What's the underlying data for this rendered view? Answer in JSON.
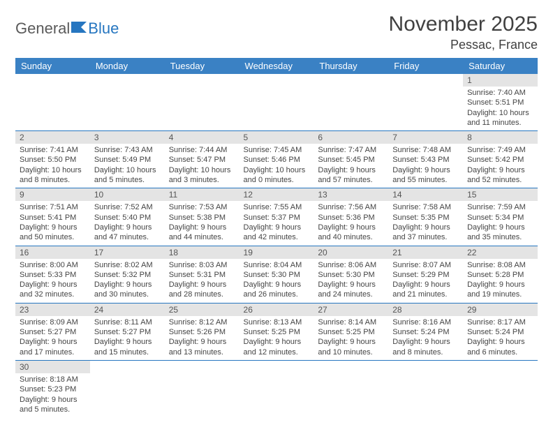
{
  "logo": {
    "text1": "General",
    "text2": "Blue",
    "flag_color": "#2676c0"
  },
  "title": "November 2025",
  "location": "Pessac, France",
  "colors": {
    "header_bg": "#3a81c4",
    "header_fg": "#ffffff",
    "daynum_bg": "#e4e4e4",
    "row_border": "#2676c0",
    "text": "#444444"
  },
  "day_headers": [
    "Sunday",
    "Monday",
    "Tuesday",
    "Wednesday",
    "Thursday",
    "Friday",
    "Saturday"
  ],
  "weeks": [
    [
      null,
      null,
      null,
      null,
      null,
      null,
      {
        "n": "1",
        "sr": "Sunrise: 7:40 AM",
        "ss": "Sunset: 5:51 PM",
        "dl": "Daylight: 10 hours and 11 minutes."
      }
    ],
    [
      {
        "n": "2",
        "sr": "Sunrise: 7:41 AM",
        "ss": "Sunset: 5:50 PM",
        "dl": "Daylight: 10 hours and 8 minutes."
      },
      {
        "n": "3",
        "sr": "Sunrise: 7:43 AM",
        "ss": "Sunset: 5:49 PM",
        "dl": "Daylight: 10 hours and 5 minutes."
      },
      {
        "n": "4",
        "sr": "Sunrise: 7:44 AM",
        "ss": "Sunset: 5:47 PM",
        "dl": "Daylight: 10 hours and 3 minutes."
      },
      {
        "n": "5",
        "sr": "Sunrise: 7:45 AM",
        "ss": "Sunset: 5:46 PM",
        "dl": "Daylight: 10 hours and 0 minutes."
      },
      {
        "n": "6",
        "sr": "Sunrise: 7:47 AM",
        "ss": "Sunset: 5:45 PM",
        "dl": "Daylight: 9 hours and 57 minutes."
      },
      {
        "n": "7",
        "sr": "Sunrise: 7:48 AM",
        "ss": "Sunset: 5:43 PM",
        "dl": "Daylight: 9 hours and 55 minutes."
      },
      {
        "n": "8",
        "sr": "Sunrise: 7:49 AM",
        "ss": "Sunset: 5:42 PM",
        "dl": "Daylight: 9 hours and 52 minutes."
      }
    ],
    [
      {
        "n": "9",
        "sr": "Sunrise: 7:51 AM",
        "ss": "Sunset: 5:41 PM",
        "dl": "Daylight: 9 hours and 50 minutes."
      },
      {
        "n": "10",
        "sr": "Sunrise: 7:52 AM",
        "ss": "Sunset: 5:40 PM",
        "dl": "Daylight: 9 hours and 47 minutes."
      },
      {
        "n": "11",
        "sr": "Sunrise: 7:53 AM",
        "ss": "Sunset: 5:38 PM",
        "dl": "Daylight: 9 hours and 44 minutes."
      },
      {
        "n": "12",
        "sr": "Sunrise: 7:55 AM",
        "ss": "Sunset: 5:37 PM",
        "dl": "Daylight: 9 hours and 42 minutes."
      },
      {
        "n": "13",
        "sr": "Sunrise: 7:56 AM",
        "ss": "Sunset: 5:36 PM",
        "dl": "Daylight: 9 hours and 40 minutes."
      },
      {
        "n": "14",
        "sr": "Sunrise: 7:58 AM",
        "ss": "Sunset: 5:35 PM",
        "dl": "Daylight: 9 hours and 37 minutes."
      },
      {
        "n": "15",
        "sr": "Sunrise: 7:59 AM",
        "ss": "Sunset: 5:34 PM",
        "dl": "Daylight: 9 hours and 35 minutes."
      }
    ],
    [
      {
        "n": "16",
        "sr": "Sunrise: 8:00 AM",
        "ss": "Sunset: 5:33 PM",
        "dl": "Daylight: 9 hours and 32 minutes."
      },
      {
        "n": "17",
        "sr": "Sunrise: 8:02 AM",
        "ss": "Sunset: 5:32 PM",
        "dl": "Daylight: 9 hours and 30 minutes."
      },
      {
        "n": "18",
        "sr": "Sunrise: 8:03 AM",
        "ss": "Sunset: 5:31 PM",
        "dl": "Daylight: 9 hours and 28 minutes."
      },
      {
        "n": "19",
        "sr": "Sunrise: 8:04 AM",
        "ss": "Sunset: 5:30 PM",
        "dl": "Daylight: 9 hours and 26 minutes."
      },
      {
        "n": "20",
        "sr": "Sunrise: 8:06 AM",
        "ss": "Sunset: 5:30 PM",
        "dl": "Daylight: 9 hours and 24 minutes."
      },
      {
        "n": "21",
        "sr": "Sunrise: 8:07 AM",
        "ss": "Sunset: 5:29 PM",
        "dl": "Daylight: 9 hours and 21 minutes."
      },
      {
        "n": "22",
        "sr": "Sunrise: 8:08 AM",
        "ss": "Sunset: 5:28 PM",
        "dl": "Daylight: 9 hours and 19 minutes."
      }
    ],
    [
      {
        "n": "23",
        "sr": "Sunrise: 8:09 AM",
        "ss": "Sunset: 5:27 PM",
        "dl": "Daylight: 9 hours and 17 minutes."
      },
      {
        "n": "24",
        "sr": "Sunrise: 8:11 AM",
        "ss": "Sunset: 5:27 PM",
        "dl": "Daylight: 9 hours and 15 minutes."
      },
      {
        "n": "25",
        "sr": "Sunrise: 8:12 AM",
        "ss": "Sunset: 5:26 PM",
        "dl": "Daylight: 9 hours and 13 minutes."
      },
      {
        "n": "26",
        "sr": "Sunrise: 8:13 AM",
        "ss": "Sunset: 5:25 PM",
        "dl": "Daylight: 9 hours and 12 minutes."
      },
      {
        "n": "27",
        "sr": "Sunrise: 8:14 AM",
        "ss": "Sunset: 5:25 PM",
        "dl": "Daylight: 9 hours and 10 minutes."
      },
      {
        "n": "28",
        "sr": "Sunrise: 8:16 AM",
        "ss": "Sunset: 5:24 PM",
        "dl": "Daylight: 9 hours and 8 minutes."
      },
      {
        "n": "29",
        "sr": "Sunrise: 8:17 AM",
        "ss": "Sunset: 5:24 PM",
        "dl": "Daylight: 9 hours and 6 minutes."
      }
    ],
    [
      {
        "n": "30",
        "sr": "Sunrise: 8:18 AM",
        "ss": "Sunset: 5:23 PM",
        "dl": "Daylight: 9 hours and 5 minutes."
      },
      null,
      null,
      null,
      null,
      null,
      null
    ]
  ]
}
